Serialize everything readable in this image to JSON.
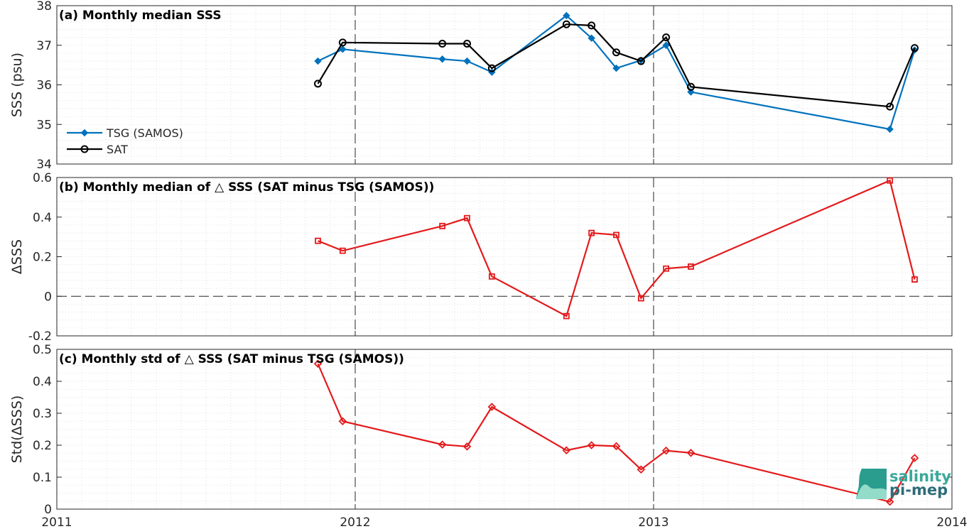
{
  "chart_data": [
    {
      "type": "line",
      "panel": "a",
      "title": "(a) Monthly median SSS",
      "ylabel": "SSS (psu)",
      "xlim": [
        2011,
        2014
      ],
      "ylim": [
        34,
        38
      ],
      "yticks": [
        34,
        35,
        36,
        37,
        38
      ],
      "ytick_labels": [
        "34",
        "35",
        "36",
        "37",
        "38"
      ],
      "legend": "upper-left (lower part)",
      "grid": "minor dotted",
      "series": [
        {
          "name": "TSG (SAMOS)",
          "color": "#0072BD",
          "marker": "diamond-filled",
          "points": [
            [
              2011.875,
              36.6
            ],
            [
              2011.958,
              36.9
            ],
            [
              2012.292,
              36.65
            ],
            [
              2012.375,
              36.6
            ],
            [
              2012.458,
              36.32
            ],
            [
              2012.708,
              37.75
            ],
            [
              2012.792,
              37.18
            ],
            [
              2012.875,
              36.42
            ],
            [
              2012.958,
              36.62
            ],
            [
              2013.042,
              37.0
            ],
            [
              2013.125,
              35.82
            ],
            [
              2013.792,
              34.88
            ],
            [
              2013.875,
              36.88
            ]
          ]
        },
        {
          "name": "SAT",
          "color": "#000000",
          "marker": "circle-open",
          "points": [
            [
              2011.875,
              36.03
            ],
            [
              2011.958,
              37.07
            ],
            [
              2012.292,
              37.04
            ],
            [
              2012.375,
              37.04
            ],
            [
              2012.458,
              36.42
            ],
            [
              2012.708,
              37.53
            ],
            [
              2012.792,
              37.5
            ],
            [
              2012.875,
              36.82
            ],
            [
              2012.958,
              36.6
            ],
            [
              2013.042,
              37.2
            ],
            [
              2013.125,
              35.95
            ],
            [
              2013.792,
              35.45
            ],
            [
              2013.875,
              36.93
            ]
          ]
        }
      ]
    },
    {
      "type": "line",
      "panel": "b",
      "title": "(b) Monthly median of △ SSS (SAT minus TSG (SAMOS))",
      "ylabel": "ΔSSS",
      "xlim": [
        2011,
        2014
      ],
      "ylim": [
        -0.2,
        0.6
      ],
      "yticks": [
        -0.2,
        0,
        0.2,
        0.4,
        0.6
      ],
      "ytick_labels": [
        "-0.2",
        "0",
        "0.2",
        "0.4",
        "0.6"
      ],
      "zero_line": "dashed",
      "series": [
        {
          "color": "#E31A1C",
          "marker": "square-open",
          "points": [
            [
              2011.875,
              0.28
            ],
            [
              2011.958,
              0.23
            ],
            [
              2012.292,
              0.355
            ],
            [
              2012.375,
              0.395
            ],
            [
              2012.458,
              0.1
            ],
            [
              2012.708,
              -0.1
            ],
            [
              2012.792,
              0.32
            ],
            [
              2012.875,
              0.31
            ],
            [
              2012.958,
              -0.01
            ],
            [
              2013.042,
              0.14
            ],
            [
              2013.125,
              0.15
            ],
            [
              2013.792,
              0.585
            ],
            [
              2013.875,
              0.085
            ]
          ]
        }
      ]
    },
    {
      "type": "line",
      "panel": "c",
      "title": "(c) Monthly std of △ SSS (SAT minus TSG (SAMOS))",
      "ylabel": "Std(ΔSSS)",
      "xlim": [
        2011,
        2014
      ],
      "ylim": [
        0,
        0.5
      ],
      "yticks": [
        0,
        0.1,
        0.2,
        0.3,
        0.4,
        0.5
      ],
      "ytick_labels": [
        "0",
        "0.1",
        "0.2",
        "0.3",
        "0.4",
        "0.5"
      ],
      "xticks": [
        2011,
        2012,
        2013,
        2014
      ],
      "xtick_labels": [
        "2011",
        "2012",
        "2013",
        "2014"
      ],
      "series": [
        {
          "color": "#E31A1C",
          "marker": "diamond-open",
          "points": [
            [
              2011.875,
              0.455
            ],
            [
              2011.958,
              0.275
            ],
            [
              2012.292,
              0.202
            ],
            [
              2012.375,
              0.196
            ],
            [
              2012.458,
              0.32
            ],
            [
              2012.708,
              0.184
            ],
            [
              2012.792,
              0.2
            ],
            [
              2012.875,
              0.197
            ],
            [
              2012.958,
              0.124
            ],
            [
              2013.042,
              0.183
            ],
            [
              2013.125,
              0.176
            ],
            [
              2013.792,
              0.023
            ],
            [
              2013.875,
              0.16
            ]
          ]
        }
      ]
    }
  ],
  "logo": {
    "line1": "salinity",
    "line2": "pi-mep"
  },
  "colors": {
    "axis": "#262626",
    "grid": "#d9d9d9",
    "year_line": "#262626"
  }
}
